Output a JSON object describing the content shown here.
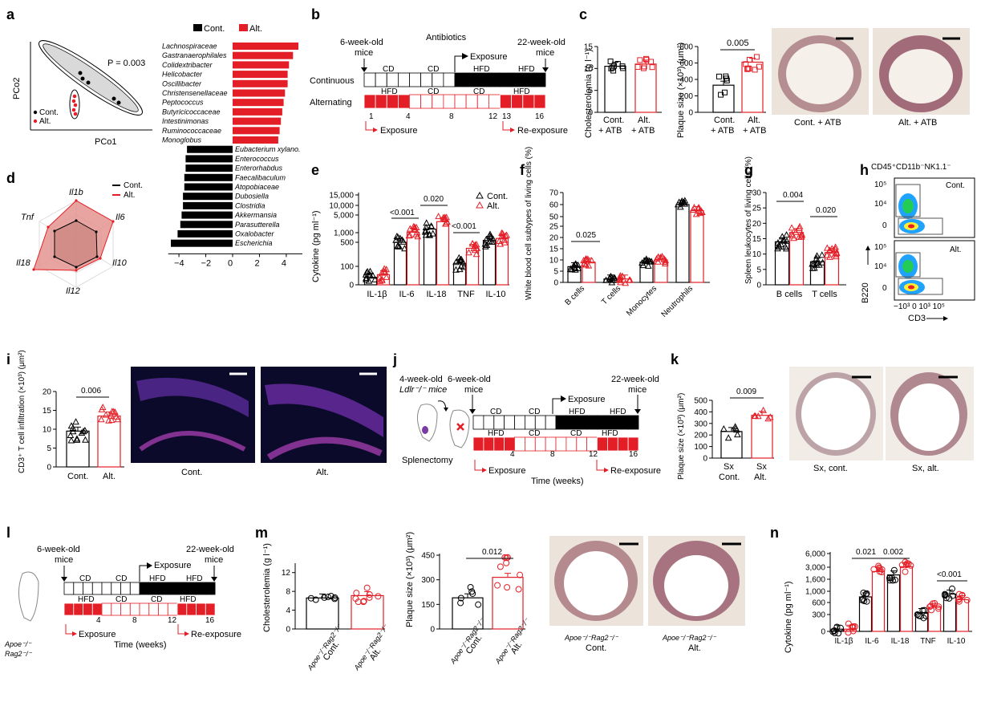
{
  "colors": {
    "control": "#000000",
    "alt": "#e41e26",
    "altFill": "#ffffff",
    "roseFill": "#e3948f",
    "sectionTissue": "#a26b7a",
    "sectionBg": "#ece3db"
  },
  "legend": {
    "cont": "Cont.",
    "alt": "Alt."
  },
  "panels": {
    "a": {
      "label": "a",
      "p": "P = 0.003",
      "x": "PCo1",
      "y": "PCo2",
      "legend_cont": "Cont.",
      "legend_alt": "Alt."
    },
    "b": {
      "label": "b",
      "start": "6-week-old",
      "start2": "mice",
      "end": "22-week-old",
      "end2": "mice",
      "antibiotics": "Antibiotics",
      "exposure": "Exposure",
      "reexposure": "Re-exposure",
      "continuous": "Continuous",
      "alternating": "Alternating",
      "cd": "CD",
      "hfd": "HFD",
      "w1": "1",
      "w4": "4",
      "w8": "8",
      "w12": "12",
      "w13": "13",
      "w16": "16"
    },
    "c": {
      "label": "c",
      "ylab1": "Cholesterolemia (g l⁻¹)",
      "ylab2": "Plaque size (×10³) (μm²)",
      "p": "0.005",
      "cat1": "Cont.",
      "cat1b": "+ ATB",
      "cat2": "Alt.",
      "cat2b": "+ ATB",
      "img1": "Cont. + ATB",
      "img2": "Alt. + ATB"
    },
    "d": {
      "label": "d",
      "il1b": "Il1b",
      "il6": "Il6",
      "il10": "Il10",
      "il12": "Il12",
      "il18": "Il18",
      "tnf": "Tnf"
    },
    "e": {
      "label": "e",
      "ylab": "Cytokine (pg ml⁻¹)",
      "p1": "<0.001",
      "p2": "0.020",
      "p3": "<0.001"
    },
    "f": {
      "label": "f",
      "ylab": "White blood cell subtypes of living cells (%)",
      "p": "0.025"
    },
    "g": {
      "label": "g",
      "ylab": "Spleen leukocytes of living cells (%)",
      "p1": "0.004",
      "p2": "0.020",
      "cat1": "B cells",
      "cat2": "T cells"
    },
    "h": {
      "label": "h",
      "title": "CD45⁺CD11b⁻NK1.1⁻",
      "cont": "Cont.",
      "alt": "Alt.",
      "y": "B220",
      "x": "CD3",
      "yt1": "10⁵",
      "yt2": "10⁴",
      "yt3": "0",
      "xt": "−10³ 0 10³ 10⁵"
    },
    "i": {
      "label": "i",
      "ylab": "CD3⁺ T cell infiltration (×10³) (μm²)",
      "p": "0.006",
      "cat1": "Cont.",
      "cat2": "Alt.",
      "img1": "Cont.",
      "img2": "Alt."
    },
    "j": {
      "label": "j",
      "start": "4-week-old",
      "ldlr": "Ldlr⁻/⁻ mice",
      "start2": "6-week-old",
      "mice": "mice",
      "end": "22-week-old",
      "end2": "mice",
      "splenectomy": "Splenectomy",
      "exposure": "Exposure",
      "reexposure": "Re-exposure",
      "time": "Time (weeks)",
      "cd": "CD",
      "hfd": "HFD",
      "w4": "4",
      "w8": "8",
      "w12": "12",
      "w16": "16"
    },
    "k": {
      "label": "k",
      "ylab": "Plaque size (×10³) (μm²)",
      "p": "0.009",
      "c1a": "Sx",
      "c1b": "Cont.",
      "c2a": "Sx",
      "c2b": "Alt.",
      "img1": "Sx, cont.",
      "img2": "Sx, alt."
    },
    "l": {
      "label": "l",
      "start": "6-week-old",
      "start2": "mice",
      "end": "22-week-old",
      "end2": "mice",
      "geno1": "Apoe⁻/⁻",
      "geno2": "Rag2⁻/⁻",
      "exposure": "Exposure",
      "reexposure": "Re-exposure",
      "time": "Time (weeks)",
      "cd": "CD",
      "hfd": "HFD",
      "w4": "4",
      "w8": "8",
      "w12": "12",
      "w16": "16"
    },
    "m": {
      "label": "m",
      "ylab1": "Cholesterolemia (g l⁻¹)",
      "ylab2": "Plaque size (×10³) (μm²)",
      "p": "0.012",
      "geno": "Apoe⁻/⁻Rag2⁻/⁻",
      "cont": "Cont.",
      "alt": "Alt."
    },
    "n": {
      "label": "n",
      "ylab": "Cytokine (pg ml⁻¹)",
      "p1": "0.021",
      "p2": "0.002",
      "p3": "<0.001"
    }
  },
  "chart_data": [
    {
      "id": "a-bar",
      "type": "bar",
      "orientation": "horizontal",
      "legend": [
        "Cont.",
        "Alt."
      ],
      "categories": [
        "Lachnospiraceae",
        "Gastranaerophilales",
        "Colidextribacter",
        "Helicobacter",
        "Oscillibacter",
        "Christensenellaceae",
        "Peptococcus",
        "Butyricicoccaceae",
        "Intestinimonas",
        "Ruminococcaceae",
        "Monoglobus",
        "Eubacterium xylano.",
        "Enterococcus",
        "Enterorhabdus",
        "Faecalibaculum",
        "Atopobiaceae",
        "Dubosiella",
        "Clostridia",
        "Akkermansia",
        "Parasutterella",
        "Oxalobacter",
        "Escherichia"
      ],
      "values": [
        4.9,
        4.5,
        4.2,
        4.1,
        4.1,
        3.9,
        3.8,
        3.7,
        3.6,
        3.5,
        3.4,
        -3.4,
        -3.5,
        -3.5,
        -3.6,
        -3.6,
        -3.7,
        -3.7,
        -3.8,
        -3.9,
        -4.1,
        -4.6
      ],
      "xticks": [
        "−4",
        "−2",
        "0",
        "2",
        "4"
      ],
      "xlim": [
        -4.8,
        5.2
      ]
    },
    {
      "id": "c-chol",
      "type": "bar",
      "categories": [
        "Cont. + ATB",
        "Alt. + ATB"
      ],
      "values": [
        10.5,
        11
      ],
      "yticks": [
        "0",
        "5",
        "10",
        "15"
      ],
      "ylim": [
        0,
        15
      ]
    },
    {
      "id": "c-plaque",
      "type": "bar",
      "categories": [
        "Cont. + ATB",
        "Alt. + ATB"
      ],
      "values": [
        330,
        610
      ],
      "yticks": [
        "0",
        "200",
        "400",
        "600",
        "800"
      ],
      "ylim": [
        0,
        800
      ]
    },
    {
      "id": "d-radar",
      "type": "radar",
      "axes": [
        "Il1b",
        "Il6",
        "Il10",
        "Il12",
        "Il18",
        "Tnf"
      ],
      "series": [
        {
          "name": "Cont.",
          "values": [
            0.55,
            0.6,
            0.55,
            0.55,
            0.55,
            0.55
          ]
        },
        {
          "name": "Alt.",
          "values": [
            1.0,
            1.0,
            0.65,
            0.6,
            1.0,
            0.85
          ]
        }
      ]
    },
    {
      "id": "e-cyt",
      "type": "bar",
      "scale": "log",
      "categories": [
        "IL-1β",
        "IL-6",
        "IL-18",
        "TNF",
        "IL-10"
      ],
      "series": [
        {
          "name": "Cont.",
          "values": [
            40,
            500,
            1800,
            150,
            600
          ]
        },
        {
          "name": "Alt.",
          "values": [
            55,
            1100,
            3500,
            400,
            700
          ]
        }
      ],
      "yticks": [
        "0",
        "100",
        "500",
        "1,000",
        "5,000",
        "10,000",
        "15,000"
      ]
    },
    {
      "id": "f-wbc",
      "type": "bar",
      "scale": "broken",
      "categories": [
        "B cells",
        "T cells",
        "Monocytes",
        "Neutrophils"
      ],
      "series": [
        {
          "name": "Cont.",
          "values": [
            7,
            1.5,
            9,
            60
          ]
        },
        {
          "name": "Alt.",
          "values": [
            9,
            1.5,
            10,
            55
          ]
        }
      ],
      "yticks": [
        "0",
        "5",
        "10",
        "15",
        "20",
        "25",
        "50",
        "60",
        "70"
      ]
    },
    {
      "id": "g-spl",
      "type": "bar",
      "categories": [
        "B cells",
        "T cells"
      ],
      "series": [
        {
          "name": "Cont.",
          "values": [
            14,
            7.5
          ]
        },
        {
          "name": "Alt.",
          "values": [
            17,
            10.5
          ]
        }
      ],
      "yticks": [
        "0",
        "5",
        "10",
        "15",
        "20",
        "25",
        "30"
      ],
      "ylim": [
        0,
        30
      ]
    },
    {
      "id": "i-cd3",
      "type": "bar",
      "categories": [
        "Cont.",
        "Alt."
      ],
      "values": [
        9.5,
        13.5
      ],
      "yticks": [
        "0",
        "5",
        "10",
        "15",
        "20"
      ],
      "ylim": [
        0,
        20
      ]
    },
    {
      "id": "k-plaque",
      "type": "bar",
      "categories": [
        "Sx Cont.",
        "Sx Alt."
      ],
      "values": [
        230,
        370
      ],
      "yticks": [
        "0",
        "100",
        "200",
        "300",
        "400",
        "500"
      ],
      "ylim": [
        0,
        500
      ]
    },
    {
      "id": "m-chol",
      "type": "bar",
      "categories": [
        "Apoe⁻/⁻Rag2⁻/⁻ Cont.",
        "Apoe⁻/⁻Rag2⁻/⁻ Alt."
      ],
      "values": [
        6.6,
        7.1
      ],
      "yticks": [
        "0",
        "4",
        "8",
        "12"
      ],
      "ylim": [
        0,
        14
      ]
    },
    {
      "id": "m-plaque",
      "type": "bar",
      "categories": [
        "Apoe⁻/⁻Rag2⁻/⁻ Cont.",
        "Apoe⁻/⁻Rag2⁻/⁻ Alt."
      ],
      "values": [
        190,
        315
      ],
      "yticks": [
        "0",
        "150",
        "300",
        "450"
      ],
      "ylim": [
        0,
        460
      ]
    },
    {
      "id": "n-cyt",
      "type": "bar",
      "scale": "log",
      "categories": [
        "IL-1β",
        "IL-6",
        "IL-18",
        "TNF",
        "IL-10"
      ],
      "series": [
        {
          "name": "Cont.",
          "values": [
            40,
            800,
            2100,
            350,
            900
          ]
        },
        {
          "name": "Alt.",
          "values": [
            40,
            2500,
            3100,
            480,
            700
          ]
        }
      ],
      "yticks": [
        "0",
        "300",
        "600",
        "1,000",
        "1,600",
        "3,000",
        "6,000"
      ]
    }
  ]
}
